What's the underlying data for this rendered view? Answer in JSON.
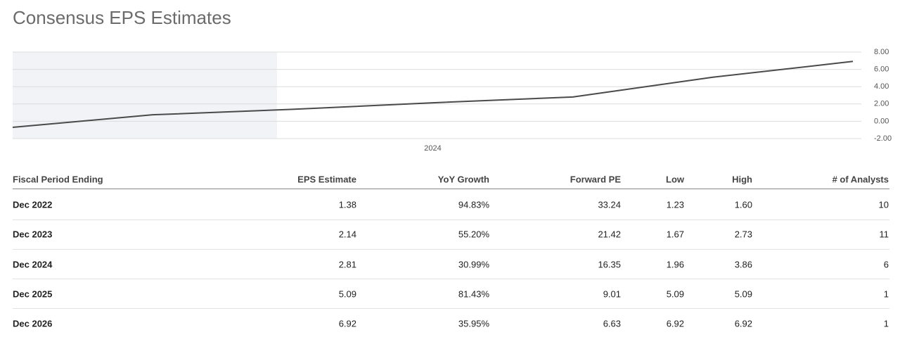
{
  "title": "Consensus EPS Estimates",
  "chart_data": {
    "type": "line",
    "categories": [
      null,
      null,
      null,
      "2024",
      null,
      null,
      null
    ],
    "series": [
      {
        "name": "EPS",
        "color": "#4a4a4a",
        "values": [
          -0.7,
          0.75,
          1.38,
          2.14,
          2.81,
          5.09,
          6.92
        ]
      }
    ],
    "ylim": [
      -2,
      8
    ],
    "yticks": [
      {
        "value": -2,
        "label": "-2.00"
      },
      {
        "value": 0,
        "label": "0.00"
      },
      {
        "value": 2,
        "label": "2.00"
      },
      {
        "value": 4,
        "label": "4.00"
      },
      {
        "value": 6,
        "label": "6.00"
      },
      {
        "value": 8,
        "label": "8.00"
      }
    ],
    "grid": true
  },
  "table": {
    "columns": [
      "Fiscal Period Ending",
      "EPS Estimate",
      "YoY Growth",
      "Forward PE",
      "Low",
      "High",
      "# of Analysts"
    ],
    "rows": [
      [
        "Dec 2022",
        "1.38",
        "94.83%",
        "33.24",
        "1.23",
        "1.60",
        "10"
      ],
      [
        "Dec 2023",
        "2.14",
        "55.20%",
        "21.42",
        "1.67",
        "2.73",
        "11"
      ],
      [
        "Dec 2024",
        "2.81",
        "30.99%",
        "16.35",
        "1.96",
        "3.86",
        "6"
      ],
      [
        "Dec 2025",
        "5.09",
        "81.43%",
        "9.01",
        "5.09",
        "5.09",
        "1"
      ],
      [
        "Dec 2026",
        "6.92",
        "35.95%",
        "6.63",
        "6.92",
        "6.92",
        "1"
      ]
    ]
  }
}
